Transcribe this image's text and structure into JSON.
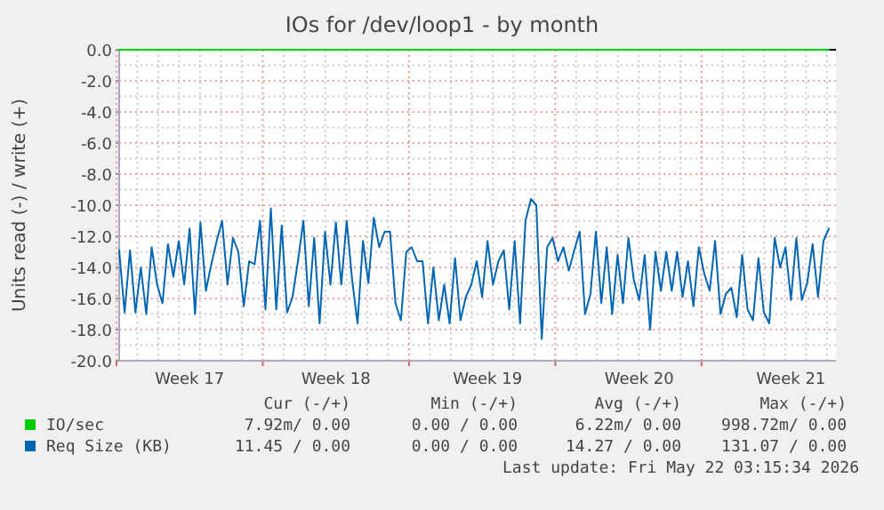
{
  "chart_data": {
    "type": "line",
    "title": "IOs for /dev/loop1 - by month",
    "ylabel": "Units read (-) / write (+)",
    "categories": [
      null,
      null,
      null,
      null,
      null,
      null,
      null,
      null,
      null,
      null,
      null,
      null,
      null,
      "Week 17",
      null,
      null,
      null,
      null,
      null,
      null,
      null,
      null,
      null,
      null,
      null,
      null,
      null,
      null,
      null,
      null,
      null,
      null,
      null,
      null,
      null,
      null,
      null,
      null,
      null,
      null,
      "Week 18",
      null,
      null,
      null,
      null,
      null,
      null,
      null,
      null,
      null,
      null,
      null,
      null,
      null,
      null,
      null,
      null,
      null,
      null,
      null,
      null,
      null,
      null,
      null,
      null,
      null,
      null,
      null,
      "Week 19",
      null,
      null,
      null,
      null,
      null,
      null,
      null,
      null,
      null,
      null,
      null,
      null,
      null,
      null,
      null,
      null,
      null,
      null,
      null,
      null,
      null,
      null,
      null,
      null,
      null,
      null,
      null,
      "Week 20",
      null,
      null,
      null,
      null,
      null,
      null,
      null,
      null,
      null,
      null,
      null,
      null,
      null,
      null,
      null,
      null,
      null,
      null,
      null,
      null,
      null,
      null,
      null,
      null,
      null,
      null,
      null,
      "Week 21",
      null,
      null,
      null,
      null,
      null,
      null,
      null
    ],
    "ylim": [
      -20,
      0
    ],
    "yticks": [
      {
        "value": 0,
        "label": "0.0"
      },
      {
        "value": -2,
        "label": "-2.0"
      },
      {
        "value": -4,
        "label": "-4.0"
      },
      {
        "value": -6,
        "label": "-6.0"
      },
      {
        "value": -8,
        "label": "-8.0"
      },
      {
        "value": -10,
        "label": "-10.0"
      },
      {
        "value": -12,
        "label": "-12.0"
      },
      {
        "value": -14,
        "label": "-14.0"
      },
      {
        "value": -16,
        "label": "-16.0"
      },
      {
        "value": -18,
        "label": "-18.0"
      },
      {
        "value": -20,
        "label": "-20.0"
      }
    ],
    "grid": true,
    "legend": "bottom",
    "marker": "none",
    "line_style": "solid",
    "series": [
      {
        "name": "IO/sec",
        "color": "#00cc00",
        "values": [
          0,
          0,
          0,
          0,
          0,
          0,
          0,
          0,
          0,
          0,
          0,
          0,
          0,
          0,
          0,
          0,
          0,
          0,
          0,
          0,
          0,
          0,
          0,
          0,
          0,
          0,
          0,
          0,
          0,
          0,
          0,
          0,
          0,
          0,
          0,
          0,
          0,
          0,
          0,
          0,
          0,
          0,
          0,
          0,
          0,
          0,
          0,
          0,
          0,
          0,
          0,
          0,
          0,
          0,
          0,
          0,
          0,
          0,
          0,
          0,
          0,
          0,
          0,
          0,
          0,
          0,
          0,
          0,
          0,
          0,
          0,
          0,
          0,
          0,
          0,
          0,
          0,
          0,
          0,
          0,
          0,
          0,
          0,
          0,
          0,
          0,
          0,
          0,
          0,
          0,
          0,
          0,
          0,
          0,
          0,
          0,
          0,
          0,
          0,
          0,
          0,
          0,
          0,
          0,
          0,
          0,
          0,
          0,
          0,
          0,
          0,
          0,
          0,
          0,
          0,
          0,
          0,
          0,
          0,
          0,
          0,
          0,
          0,
          0,
          0,
          0,
          0,
          0,
          0,
          0,
          0,
          0
        ]
      },
      {
        "name": "Req Size (KB)",
        "color": "#0066b3",
        "values": [
          -12.9,
          -16.9,
          -12.9,
          -16.9,
          -14,
          -17,
          -12.7,
          -15.1,
          -16.3,
          -12.5,
          -14.6,
          -12.3,
          -15.1,
          -11.5,
          -17,
          -11.1,
          -15.5,
          -13.8,
          -12.3,
          -11,
          -15.1,
          -12.1,
          -13,
          -16.5,
          -13.6,
          -13.8,
          -11,
          -16.7,
          -10.2,
          -16.7,
          -11.3,
          -16.9,
          -15.9,
          -13.6,
          -11,
          -16.5,
          -12.1,
          -17.6,
          -11.7,
          -15.1,
          -11.1,
          -15.1,
          -11,
          -14.8,
          -17.6,
          -12.3,
          -15,
          -10.8,
          -12.7,
          -11.7,
          -11.7,
          -16.3,
          -17.4,
          -13,
          -12.7,
          -13.6,
          -13.6,
          -17.6,
          -14,
          -17.4,
          -15.1,
          -17.6,
          -13.4,
          -17.4,
          -15.9,
          -15.1,
          -13.6,
          -15.9,
          -12.3,
          -15.1,
          -13.6,
          -12.9,
          -16.7,
          -12.3,
          -17.6,
          -11,
          -9.6,
          -10,
          -18.6,
          -12.7,
          -12.1,
          -13.6,
          -12.7,
          -14.2,
          -12.9,
          -11.7,
          -17,
          -15.7,
          -11.7,
          -16.3,
          -12.7,
          -17,
          -13.2,
          -16.3,
          -12.1,
          -14.8,
          -16.1,
          -13.2,
          -18,
          -13,
          -15.5,
          -13,
          -15.5,
          -13,
          -15.9,
          -13.6,
          -16.5,
          -12.7,
          -14.4,
          -15.5,
          -12.3,
          -17,
          -15.7,
          -15.3,
          -17.2,
          -13.2,
          -16.7,
          -17.4,
          -13.4,
          -16.9,
          -17.6,
          -12.1,
          -14,
          -12.7,
          -16.1,
          -12.1,
          -16.1,
          -15,
          -12.5,
          -15.9,
          -12.3,
          -11.5
        ]
      }
    ],
    "annotations": [
      "Cur (-/+)",
      "Min (-/+)",
      "Avg (-/+)",
      "Max (-/+)",
      "7.92m/ 0.00",
      "0.00 / 0.00",
      "6.22m/ 0.00",
      "998.72m/ 0.00",
      "11.45 / 0.00",
      "0.00 / 0.00",
      "14.27 / 0.00",
      "131.07 / 0.00",
      "Last update: Fri May 22 03:15:34 2026"
    ]
  }
}
